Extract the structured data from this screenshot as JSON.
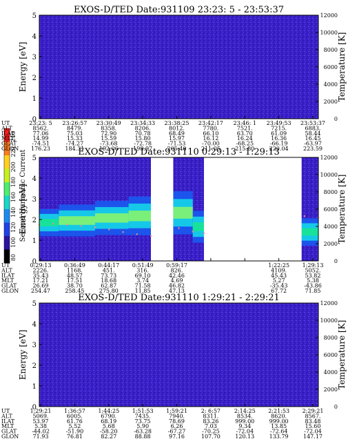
{
  "colors": {
    "background_noise": "#3a1fc8",
    "noise_dark": "#2a13a8",
    "noise_light": "#5a48e0",
    "band_blue": "#1a5af0",
    "band_cyan": "#16c8e8",
    "band_green": "#18e29a",
    "band_bright": "#7af07a",
    "gap_white": "#ffffff",
    "profile_dots": "#f08a8a"
  },
  "colorbar": {
    "label": "Second Harmonic Current",
    "ticks": [
      "240",
      "220",
      "200",
      "180",
      "160",
      "140",
      "120",
      "100",
      "80"
    ],
    "colors": [
      "#ff1e1e",
      "#ff7a1e",
      "#ffd01e",
      "#c8f01e",
      "#4af06e",
      "#16d8c8",
      "#1a8cf0",
      "#2040e8",
      "#2a14a0",
      "#000000"
    ]
  },
  "chart_data": [
    {
      "type": "heatmap",
      "title": "EXOS-D/TED  Date:931109  23:23: 5 - 23:53:37",
      "ylabel": "Energy [eV]",
      "ylabel_right": "Temperature [K]",
      "ylim": [
        0,
        5
      ],
      "ylim_right": [
        0,
        12000
      ],
      "yticks": [
        "0",
        "1",
        "2",
        "3",
        "4",
        "5"
      ],
      "yticks_right": [
        "0",
        "2000",
        "4000",
        "6000",
        "8000",
        "10000",
        "12000"
      ],
      "data_gaps": [],
      "spectrum": [],
      "temperature_profile": [],
      "ephemeris": [
        {
          "label": "UT",
          "values": [
            "23:23: 5",
            "23:26:57",
            "23:30:49",
            "23:34:33",
            "23:38:25",
            "23:42:17",
            "23:46: 1",
            "23:49:53",
            "23:53:37"
          ]
        },
        {
          "label": "ALT",
          "values": [
            "8562.",
            "8479.",
            "8358.",
            "8206.",
            "8012.",
            "7780.",
            "7521.",
            "7215.",
            "6883."
          ]
        },
        {
          "label": "ILAT",
          "values": [
            "77.06",
            "75.03",
            "72.90",
            "70.78",
            "68.49",
            "66.10",
            "63.70",
            "61.09",
            "58.44"
          ]
        },
        {
          "label": "MLT",
          "values": [
            "14.99",
            "15.33",
            "15.59",
            "15.80",
            "15.97",
            "16.12",
            "16.24",
            "16.36",
            "16.45"
          ]
        },
        {
          "label": "GLAT",
          "values": [
            "-74.51",
            "-74.27",
            "-73.68",
            "-72.78",
            "-71.53",
            "-70.00",
            "-68.25",
            "-66.19",
            "-63.97"
          ]
        },
        {
          "label": "GLON",
          "values": [
            "176.23",
            "184.31",
            "192.06",
            "198.97",
            "205.40",
            "211.05",
            "215.80",
            "220.04",
            "223.59"
          ]
        }
      ]
    },
    {
      "type": "heatmap",
      "title": "EXOS-D/TED  Date:931110  0:29:13 - 1:29:13",
      "ylabel": "Energy [eV]",
      "ylabel_right": "Temperature [K]",
      "ylim": [
        0,
        5
      ],
      "ylim_right": [
        0,
        12000
      ],
      "yticks": [
        "0",
        "1",
        "2",
        "3",
        "4",
        "5"
      ],
      "yticks_right": [
        "0",
        "2000",
        "4000",
        "6000",
        "8000",
        "10000",
        "12000"
      ],
      "data_gaps": [
        [
          0.4,
          0.48
        ],
        [
          0.59,
          0.94
        ]
      ],
      "spectrum": [
        {
          "from": 0.0,
          "to": 0.07,
          "energy_low": 1.55,
          "energy_high": 2.15,
          "level": 170
        },
        {
          "from": 0.07,
          "to": 0.2,
          "energy_low": 1.6,
          "energy_high": 2.3,
          "level": 175
        },
        {
          "from": 0.2,
          "to": 0.32,
          "energy_low": 1.7,
          "energy_high": 2.45,
          "level": 180
        },
        {
          "from": 0.32,
          "to": 0.4,
          "energy_low": 1.75,
          "energy_high": 2.6,
          "level": 178
        },
        {
          "from": 0.48,
          "to": 0.55,
          "energy_low": 1.85,
          "energy_high": 2.8,
          "level": 185
        },
        {
          "from": 0.55,
          "to": 0.59,
          "energy_low": 1.3,
          "energy_high": 2.0,
          "level": 160
        },
        {
          "from": 0.94,
          "to": 1.0,
          "energy_low": 1.1,
          "energy_high": 1.7,
          "level": 150
        }
      ],
      "temperature_profile": [
        {
          "x": 0.0,
          "temperature": 4200
        },
        {
          "x": 0.05,
          "temperature": 4300
        },
        {
          "x": 0.1,
          "temperature": 4200
        },
        {
          "x": 0.15,
          "temperature": 4050
        },
        {
          "x": 0.2,
          "temperature": 3900
        },
        {
          "x": 0.25,
          "temperature": 3650
        },
        {
          "x": 0.3,
          "temperature": 3350
        },
        {
          "x": 0.35,
          "temperature": 3100
        },
        {
          "x": 0.4,
          "temperature": 2900
        },
        {
          "x": 0.5,
          "temperature": 3800
        },
        {
          "x": 0.55,
          "temperature": 3400
        },
        {
          "x": 0.59,
          "temperature": 3200
        },
        {
          "x": 0.95,
          "temperature": 5200
        },
        {
          "x": 1.0,
          "temperature": 5000
        }
      ],
      "ephemeris": [
        {
          "label": "UT",
          "values": [
            "0:29:13",
            "0:36:49",
            "0:44:17",
            "0:51:49",
            "0:59:17",
            "",
            "",
            "1:22:25",
            "1:29:13"
          ]
        },
        {
          "label": "ALT",
          "values": [
            "2226.",
            "1168.",
            "451.",
            "316.",
            "826.",
            "",
            "",
            "4109.",
            "5052."
          ]
        },
        {
          "label": "ILAT",
          "values": [
            "35.43",
            "48.57",
            "73.73",
            "69.10",
            "42.46",
            "",
            "",
            "45.43",
            "53.82"
          ]
        },
        {
          "label": "MLT",
          "values": [
            "17.21",
            "17.51",
            "18.68",
            "3.74",
            "4.69",
            "",
            "",
            "5.27",
            "5.38"
          ]
        },
        {
          "label": "GLAT",
          "values": [
            "26.69",
            "38.70",
            "62.87",
            "71.58",
            "46.82",
            "",
            "",
            "-35.43",
            "-43.86"
          ]
        },
        {
          "label": "GLON",
          "values": [
            "254.47",
            "258.45",
            "275.80",
            "11.85",
            "47.13",
            "",
            "",
            "67.72",
            "71.85"
          ]
        }
      ]
    },
    {
      "type": "heatmap",
      "title": "EXOS-D/TED  Date:931110  1:29:21 - 2:29:21",
      "ylabel": "Energy [eV]",
      "ylabel_right": "Temperature [K]",
      "ylim": [
        0,
        5
      ],
      "ylim_right": [
        0,
        12000
      ],
      "yticks": [
        "0",
        "1",
        "2",
        "3",
        "4",
        "5"
      ],
      "yticks_right": [
        "0",
        "2000",
        "4000",
        "6000",
        "8000",
        "10000",
        "12000"
      ],
      "data_gaps": [],
      "spectrum": [],
      "temperature_profile": [],
      "ephemeris": [
        {
          "label": "UT",
          "values": [
            "1:29:21",
            "1:36:57",
            "1:44:25",
            "1:51:53",
            "1:59:21",
            "2: 6:57",
            "2:14:25",
            "2:21:53",
            "2:29:21"
          ]
        },
        {
          "label": "ALT",
          "values": [
            "5069.",
            "6005.",
            "6790.",
            "7435.",
            "7940.",
            "8311.",
            "8534.",
            "8620.",
            "8567."
          ]
        },
        {
          "label": "ILAT",
          "values": [
            "53.97",
            "61.76",
            "68.19",
            "73.75",
            "78.69",
            "83.26",
            "999.00",
            "999.00",
            "83.48"
          ]
        },
        {
          "label": "MLT",
          "values": [
            "5.38",
            "5.52",
            "5.68",
            "5.90",
            "6.26",
            "7.03",
            "9.34",
            "13.85",
            "15.60"
          ]
        },
        {
          "label": "GLAT",
          "values": [
            "-44.02",
            "-51.90",
            "-58.20",
            "-63.28",
            "-67.27",
            "-70.25",
            "-72.04",
            "-72.64",
            "-72.04"
          ]
        },
        {
          "label": "GLON",
          "values": [
            "71.93",
            "76.81",
            "82.27",
            "88.88",
            "97.16",
            "107.70",
            "120.13",
            "133.79",
            "147.17"
          ]
        }
      ]
    }
  ]
}
